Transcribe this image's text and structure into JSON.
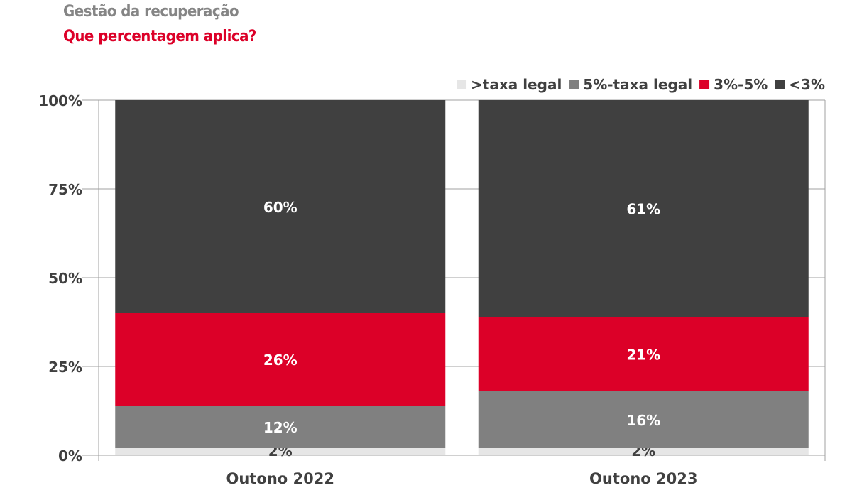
{
  "header": {
    "title": "Gestão da recuperação",
    "subtitle": "Que percentagem aplica?"
  },
  "chart_data": {
    "type": "bar",
    "stacked": true,
    "title": "Que percentagem aplica?",
    "xlabel": "",
    "ylabel": "",
    "ylim": [
      0,
      100
    ],
    "yticks": [
      "0%",
      "25%",
      "50%",
      "75%",
      "100%"
    ],
    "ytick_values": [
      0,
      25,
      50,
      75,
      100
    ],
    "grid": true,
    "legend_position": "top-right",
    "categories": [
      "Outono 2022",
      "Outono 2023"
    ],
    "series": [
      {
        "name": ">taxa legal",
        "color": "#e6e6e6",
        "label_color": "#404040",
        "values": [
          2,
          2
        ]
      },
      {
        "name": "5%-taxa legal",
        "color": "#808080",
        "label_color": "#ffffff",
        "values": [
          12,
          16
        ]
      },
      {
        "name": "3%-5%",
        "color": "#dc0028",
        "label_color": "#ffffff",
        "values": [
          26,
          21
        ]
      },
      {
        "name": "<3%",
        "color": "#404040",
        "label_color": "#ffffff",
        "values": [
          60,
          61
        ]
      }
    ]
  }
}
